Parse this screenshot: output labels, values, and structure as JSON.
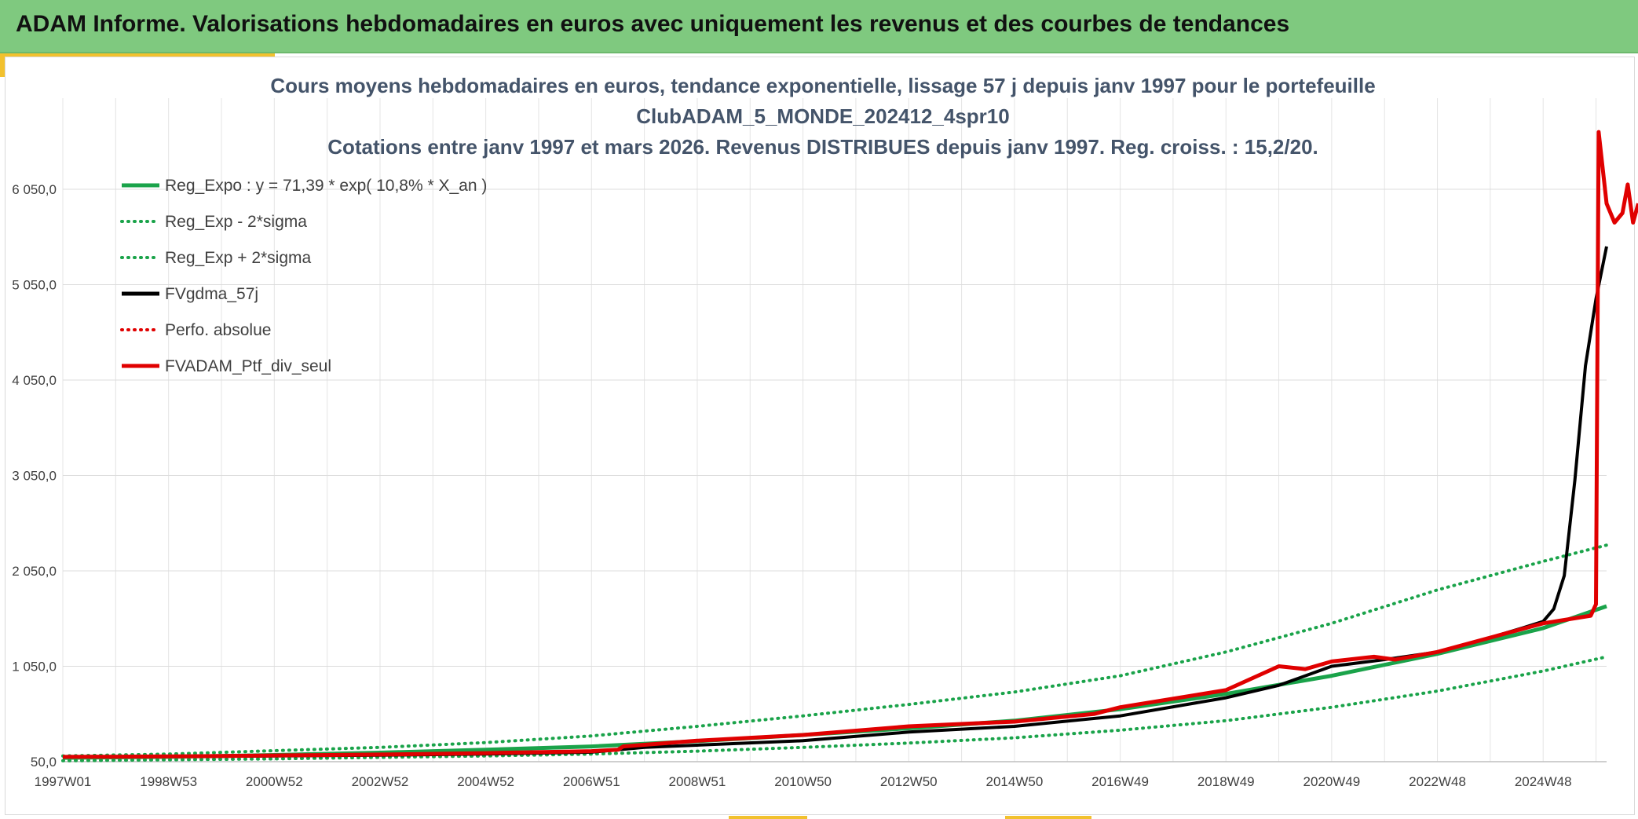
{
  "header": {
    "title": "ADAM Informe. Valorisations hebdomadaires en euros avec uniquement les revenus et des courbes de tendances"
  },
  "colors": {
    "banner": "#7fc97f",
    "accent": "#f2c12e",
    "reg_green": "#1aa34a",
    "fv_black": "#000000",
    "adam_red": "#e00000"
  },
  "chart_data": {
    "type": "line",
    "title_lines": [
      "Cours moyens hebdomadaires en euros, tendance exponentielle, lissage 57 j depuis janv 1997 pour le portefeuille",
      "ClubADAM_5_MONDE_202412_4spr10",
      "Cotations entre janv 1997 et mars 2026. Revenus DISTRIBUES depuis janv 1997. Reg. croiss. : 15,2/20."
    ],
    "x_tick_labels": [
      "1997W01",
      "1998W53",
      "2000W52",
      "2002W52",
      "2004W52",
      "2006W51",
      "2008W51",
      "2010W50",
      "2012W50",
      "2014W50",
      "2016W49",
      "2018W49",
      "2020W49",
      "2022W48",
      "2024W48"
    ],
    "x_ticks_year": [
      1997.0,
      1999.0,
      2001.0,
      2003.0,
      2005.0,
      2007.0,
      2009.0,
      2011.0,
      2013.0,
      2015.0,
      2017.0,
      2019.0,
      2021.0,
      2023.0,
      2025.0
    ],
    "y_tick_labels": [
      "50,0",
      "1 050,0",
      "2 050,0",
      "3 050,0",
      "4 050,0",
      "5 050,0",
      "6 050,0"
    ],
    "y_ticks": [
      50,
      1050,
      2050,
      3050,
      4050,
      5050,
      6050
    ],
    "xlim_year": [
      1997.0,
      2026.2
    ],
    "ylim": [
      50,
      7000
    ],
    "grid": true,
    "legend_position": "top-left",
    "legend": [
      {
        "label": "Reg_Expo : y = 71,39 * exp( 10,8% *  X_an )",
        "color": "#1aa34a",
        "style": "solid"
      },
      {
        "label": "Reg_Exp - 2*sigma",
        "color": "#1aa34a",
        "style": "dotted"
      },
      {
        "label": "Reg_Exp + 2*sigma",
        "color": "#1aa34a",
        "style": "dotted"
      },
      {
        "label": "FVgdma_57j",
        "color": "#000000",
        "style": "solid"
      },
      {
        "label": "Perfo. absolue",
        "color": "#e00000",
        "style": "dotted"
      },
      {
        "label": "FVADAM_Ptf_div_seul",
        "color": "#e00000",
        "style": "solid"
      }
    ],
    "series": [
      {
        "name": "Reg_Expo : y = 71,39 * exp( 10,8% *  X_an )",
        "x": [
          1997.0,
          1999.0,
          2001.0,
          2003.0,
          2005.0,
          2007.0,
          2009.0,
          2011.0,
          2013.0,
          2015.0,
          2017.0,
          2019.0,
          2021.0,
          2023.0,
          2025.0,
          2026.2
        ],
        "y": [
          90,
          100,
          120,
          145,
          175,
          210,
          265,
          330,
          400,
          480,
          600,
          760,
          950,
          1180,
          1450,
          1680
        ]
      },
      {
        "name": "Reg_Exp - 2*sigma",
        "x": [
          1997.0,
          1999.0,
          2001.0,
          2003.0,
          2005.0,
          2007.0,
          2009.0,
          2011.0,
          2013.0,
          2015.0,
          2017.0,
          2019.0,
          2021.0,
          2023.0,
          2025.0,
          2026.2
        ],
        "y": [
          60,
          70,
          80,
          95,
          110,
          130,
          160,
          200,
          245,
          300,
          380,
          480,
          620,
          790,
          1000,
          1150
        ]
      },
      {
        "name": "Reg_Exp + 2*sigma",
        "x": [
          1997.0,
          1999.0,
          2001.0,
          2003.0,
          2005.0,
          2007.0,
          2009.0,
          2011.0,
          2013.0,
          2015.0,
          2017.0,
          2019.0,
          2021.0,
          2023.0,
          2025.0,
          2026.2
        ],
        "y": [
          110,
          130,
          165,
          200,
          250,
          320,
          420,
          530,
          650,
          780,
          950,
          1200,
          1500,
          1850,
          2150,
          2320
        ]
      },
      {
        "name": "FVgdma_57j",
        "x": [
          1997.0,
          2000.0,
          2003.0,
          2005.0,
          2007.0,
          2008.0,
          2011.0,
          2013.0,
          2015.0,
          2017.0,
          2019.0,
          2020.0,
          2021.0,
          2022.0,
          2023.0,
          2024.0,
          2024.6,
          2025.0,
          2025.2,
          2025.4,
          2025.6,
          2025.8,
          2026.0,
          2026.2
        ],
        "y": [
          100,
          105,
          118,
          130,
          150,
          200,
          270,
          360,
          420,
          530,
          720,
          850,
          1050,
          1120,
          1200,
          1350,
          1450,
          1520,
          1650,
          2000,
          3000,
          4200,
          4900,
          5450
        ]
      },
      {
        "name": "FVADAM_Ptf_div_seul",
        "x": [
          1997.0,
          1999.0,
          2001.0,
          2003.0,
          2005.0,
          2007.0,
          2007.5,
          2007.6,
          2009.0,
          2011.0,
          2013.0,
          2015.0,
          2016.5,
          2017.0,
          2019.0,
          2020.0,
          2020.5,
          2021.0,
          2021.8,
          2022.2,
          2023.0,
          2024.0,
          2025.0,
          2025.9,
          2026.0,
          2026.05,
          2026.2,
          2026.35,
          2026.5,
          2026.6,
          2026.7,
          2026.8
        ],
        "y": [
          100,
          105,
          115,
          125,
          140,
          160,
          175,
          210,
          270,
          330,
          420,
          470,
          550,
          620,
          800,
          1050,
          1020,
          1100,
          1150,
          1120,
          1200,
          1350,
          1500,
          1580,
          1700,
          6650,
          5900,
          5700,
          5800,
          6100,
          5700,
          5900
        ]
      }
    ]
  }
}
